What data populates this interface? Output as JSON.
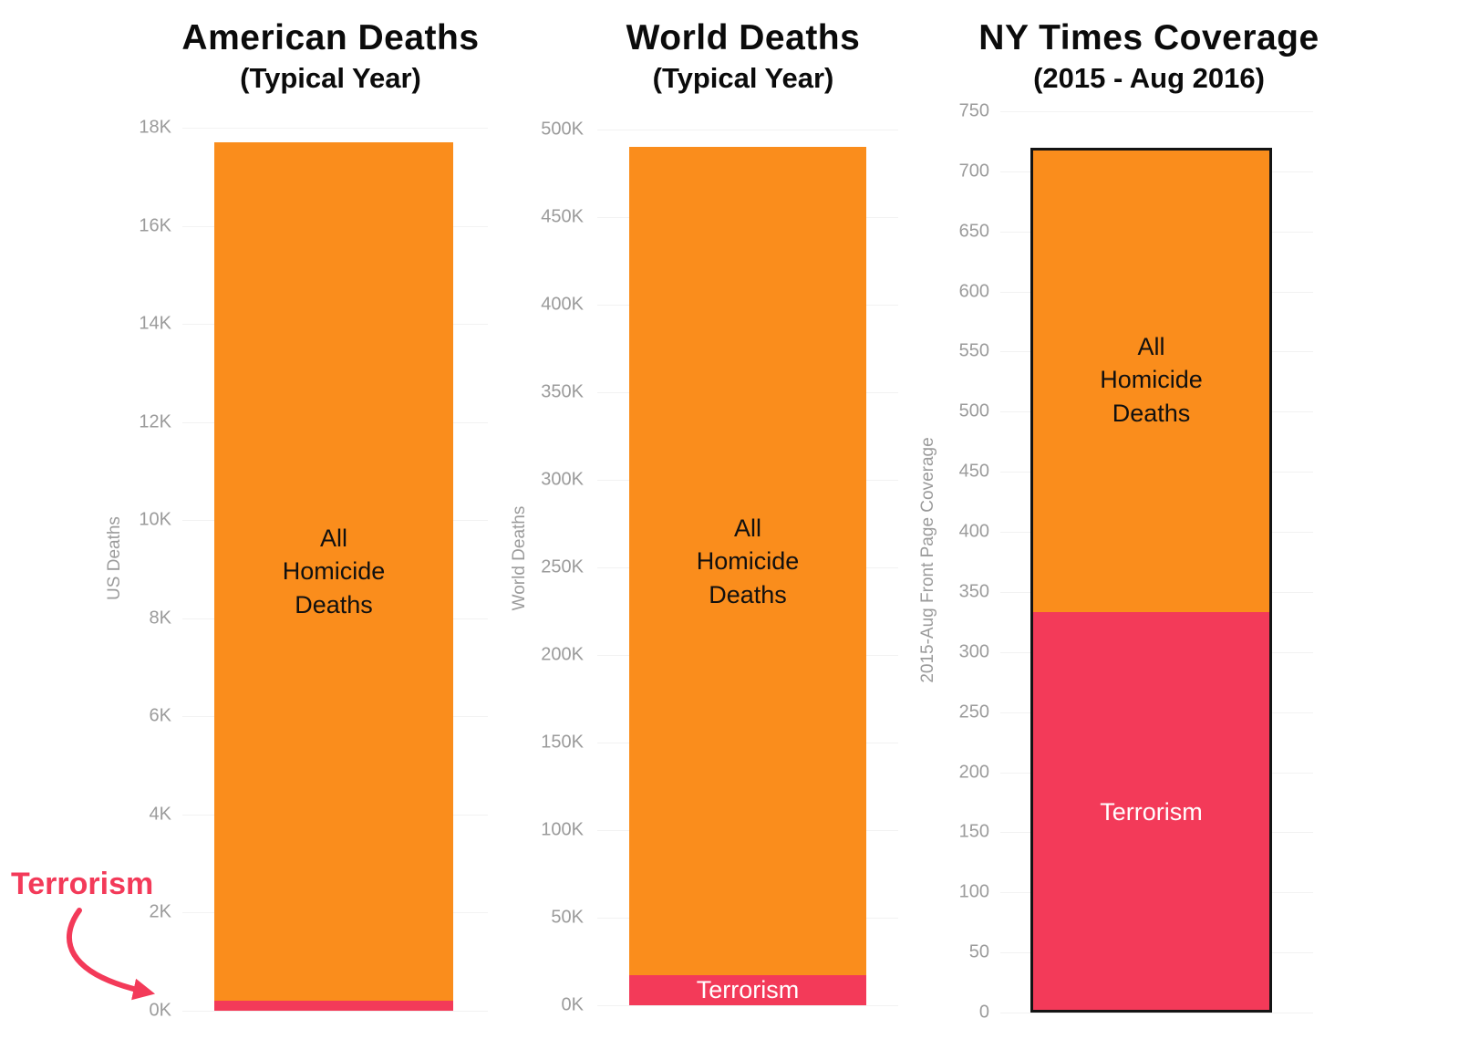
{
  "annotation": {
    "label": "Terrorism"
  },
  "colors": {
    "homicide": "#FA8D1C",
    "terrorism": "#F33A59",
    "axis_text": "#9B9B9B",
    "grid": "#F2F2F2",
    "title_text": "#0B0B0B",
    "bar_outline": "#141414"
  },
  "chart_data": [
    {
      "type": "bar",
      "title": "American Deaths",
      "subtitle": "(Typical Year)",
      "ylabel": "US Deaths",
      "ylim": [
        0,
        18000
      ],
      "grid": true,
      "legend": "none",
      "ytick_values": [
        0,
        2000,
        4000,
        6000,
        8000,
        10000,
        12000,
        14000,
        16000,
        18000
      ],
      "ytick_labels": [
        "0K",
        "2K",
        "4K",
        "6K",
        "8K",
        "10K",
        "12K",
        "14K",
        "16K",
        "18K"
      ],
      "stack": [
        {
          "name": "Terrorism",
          "value": 200,
          "color": "terrorism",
          "label": "",
          "label_color": "#ffffff"
        },
        {
          "name": "All Homicide Deaths",
          "value": 17500,
          "color": "homicide",
          "label": "All\nHomicide\nDeaths",
          "label_color": "#101010"
        }
      ]
    },
    {
      "type": "bar",
      "title": "World Deaths",
      "subtitle": "(Typical Year)",
      "ylabel": "World Deaths",
      "ylim": [
        0,
        500000
      ],
      "grid": true,
      "legend": "none",
      "ytick_values": [
        0,
        50000,
        100000,
        150000,
        200000,
        250000,
        300000,
        350000,
        400000,
        450000,
        500000
      ],
      "ytick_labels": [
        "0K",
        "50K",
        "100K",
        "150K",
        "200K",
        "250K",
        "300K",
        "350K",
        "400K",
        "450K",
        "500K"
      ],
      "stack": [
        {
          "name": "Terrorism",
          "value": 17000,
          "color": "terrorism",
          "label": "Terrorism",
          "label_color": "#ffffff"
        },
        {
          "name": "All Homicide Deaths",
          "value": 473000,
          "color": "homicide",
          "label": "All\nHomicide\nDeaths",
          "label_color": "#101010"
        }
      ]
    },
    {
      "type": "bar",
      "title": "NY Times Coverage",
      "subtitle": "(2015 - Aug 2016)",
      "ylabel": "2015-Aug Front Page Coverage",
      "ylim": [
        0,
        750
      ],
      "grid": true,
      "legend": "none",
      "outlined": true,
      "ytick_values": [
        0,
        50,
        100,
        150,
        200,
        250,
        300,
        350,
        400,
        450,
        500,
        550,
        600,
        650,
        700,
        750
      ],
      "ytick_labels": [
        "0",
        "50",
        "100",
        "150",
        "200",
        "250",
        "300",
        "350",
        "400",
        "450",
        "500",
        "550",
        "600",
        "650",
        "700",
        "750"
      ],
      "stack": [
        {
          "name": "Terrorism",
          "value": 333,
          "color": "terrorism",
          "label": "Terrorism",
          "label_color": "#ffffff"
        },
        {
          "name": "All Homicide Deaths",
          "value": 387,
          "color": "homicide",
          "label": "All\nHomicide\nDeaths",
          "label_color": "#101010"
        }
      ]
    }
  ]
}
